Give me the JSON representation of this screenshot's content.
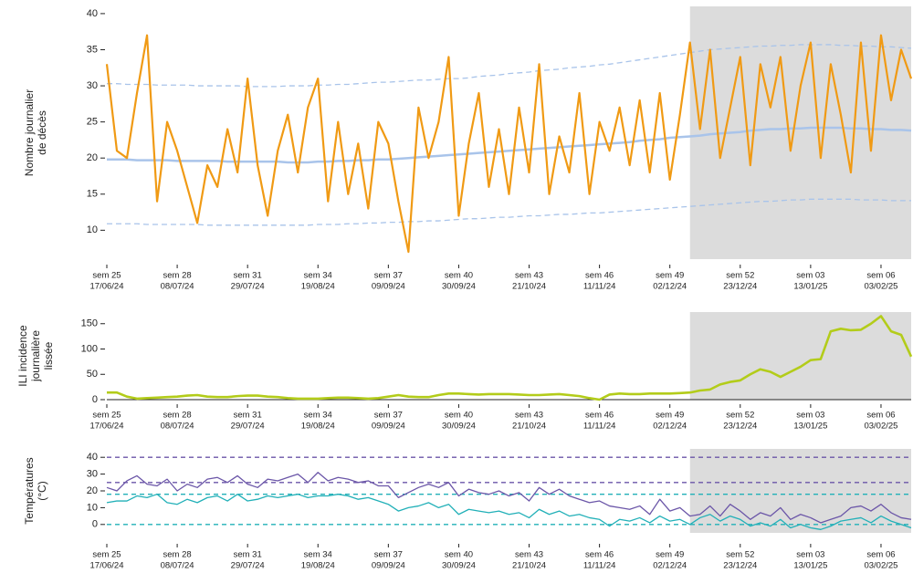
{
  "chart_data": [
    {
      "type": "line",
      "ylabel": [
        "Nombre journalier",
        "de décès"
      ],
      "ylim": [
        6,
        41
      ],
      "yticks": [
        10,
        15,
        20,
        25,
        30,
        35,
        40
      ],
      "xlim": [
        "17/06/24",
        "12/02/25"
      ],
      "shade_from": "08/12/24",
      "shade_color": "#dcdcdc",
      "xticks": [
        {
          "value": "17/06/24",
          "label": "sem 25"
        },
        {
          "value": "08/07/24",
          "label": "sem 28"
        },
        {
          "value": "29/07/24",
          "label": "sem 31"
        },
        {
          "value": "19/08/24",
          "label": "sem 34"
        },
        {
          "value": "09/09/24",
          "label": "sem 37"
        },
        {
          "value": "30/09/24",
          "label": "sem 40"
        },
        {
          "value": "21/10/24",
          "label": "sem 43"
        },
        {
          "value": "11/11/24",
          "label": "sem 46"
        },
        {
          "value": "02/12/24",
          "label": "sem 49"
        },
        {
          "value": "23/12/24",
          "label": "sem 52"
        },
        {
          "value": "13/01/25",
          "label": "sem 03"
        },
        {
          "value": "03/02/25",
          "label": "sem 06"
        }
      ],
      "x": [
        "17/06/24",
        "20/06/24",
        "23/06/24",
        "26/06/24",
        "29/06/24",
        "02/07/24",
        "05/07/24",
        "08/07/24",
        "11/07/24",
        "14/07/24",
        "17/07/24",
        "20/07/24",
        "23/07/24",
        "26/07/24",
        "29/07/24",
        "01/08/24",
        "04/08/24",
        "07/08/24",
        "10/08/24",
        "13/08/24",
        "16/08/24",
        "19/08/24",
        "22/08/24",
        "25/08/24",
        "28/08/24",
        "31/08/24",
        "03/09/24",
        "06/09/24",
        "09/09/24",
        "12/09/24",
        "15/09/24",
        "18/09/24",
        "21/09/24",
        "24/09/24",
        "27/09/24",
        "30/09/24",
        "03/10/24",
        "06/10/24",
        "09/10/24",
        "12/10/24",
        "15/10/24",
        "18/10/24",
        "21/10/24",
        "24/10/24",
        "27/10/24",
        "30/10/24",
        "02/11/24",
        "05/11/24",
        "08/11/24",
        "11/11/24",
        "14/11/24",
        "17/11/24",
        "20/11/24",
        "23/11/24",
        "26/11/24",
        "29/11/24",
        "02/12/24",
        "05/12/24",
        "08/12/24",
        "11/12/24",
        "14/12/24",
        "17/12/24",
        "20/12/24",
        "23/12/24",
        "26/12/24",
        "29/12/24",
        "01/01/25",
        "04/01/25",
        "07/01/25",
        "10/01/25",
        "13/01/25",
        "16/01/25",
        "19/01/25",
        "22/01/25",
        "25/01/25",
        "28/01/25",
        "31/01/25",
        "03/02/25",
        "06/02/25",
        "09/02/25",
        "12/02/25"
      ],
      "series": [
        {
          "color": "#a9c4ea",
          "dash": true,
          "width": 1.3,
          "values": [
            30.3,
            30.3,
            30.2,
            30.2,
            30.2,
            30.1,
            30.1,
            30.1,
            30.1,
            30.0,
            30.0,
            30.0,
            30.0,
            30.0,
            29.9,
            29.9,
            29.9,
            29.9,
            30.0,
            30.0,
            30.0,
            30.1,
            30.1,
            30.2,
            30.2,
            30.3,
            30.4,
            30.5,
            30.5,
            30.6,
            30.7,
            30.8,
            30.8,
            30.9,
            31.0,
            31.0,
            31.1,
            31.3,
            31.4,
            31.5,
            31.7,
            31.8,
            31.9,
            32.1,
            32.2,
            32.3,
            32.5,
            32.6,
            32.7,
            32.9,
            33.0,
            33.2,
            33.4,
            33.6,
            33.8,
            34.0,
            34.2,
            34.4,
            34.6,
            34.8,
            35.0,
            35.1,
            35.2,
            35.3,
            35.4,
            35.5,
            35.5,
            35.6,
            35.6,
            35.7,
            35.7,
            35.7,
            35.7,
            35.6,
            35.6,
            35.5,
            35.5,
            35.4,
            35.4,
            35.3,
            35.2
          ]
        },
        {
          "color": "#a9c4ea",
          "dash": true,
          "width": 1.3,
          "values": [
            10.9,
            10.9,
            10.9,
            10.9,
            10.8,
            10.8,
            10.8,
            10.8,
            10.8,
            10.8,
            10.7,
            10.7,
            10.7,
            10.7,
            10.7,
            10.7,
            10.7,
            10.7,
            10.7,
            10.7,
            10.7,
            10.8,
            10.8,
            10.8,
            10.9,
            10.9,
            11.0,
            11.0,
            11.1,
            11.1,
            11.2,
            11.2,
            11.3,
            11.3,
            11.4,
            11.5,
            11.6,
            11.6,
            11.7,
            11.8,
            11.8,
            11.9,
            12.0,
            12.0,
            12.1,
            12.2,
            12.2,
            12.3,
            12.4,
            12.4,
            12.5,
            12.6,
            12.7,
            12.8,
            12.9,
            13.0,
            13.1,
            13.2,
            13.3,
            13.4,
            13.5,
            13.6,
            13.7,
            13.8,
            13.9,
            14.0,
            14.0,
            14.1,
            14.2,
            14.2,
            14.3,
            14.3,
            14.3,
            14.3,
            14.3,
            14.2,
            14.2,
            14.2,
            14.1,
            14.1,
            14.1
          ]
        },
        {
          "color": "#a9c4ea",
          "dash": false,
          "width": 2.5,
          "values": [
            19.8,
            19.8,
            19.8,
            19.7,
            19.7,
            19.7,
            19.7,
            19.6,
            19.6,
            19.6,
            19.6,
            19.6,
            19.5,
            19.5,
            19.5,
            19.5,
            19.5,
            19.5,
            19.4,
            19.4,
            19.4,
            19.5,
            19.5,
            19.6,
            19.6,
            19.7,
            19.7,
            19.8,
            19.8,
            19.9,
            20.0,
            20.1,
            20.2,
            20.3,
            20.4,
            20.5,
            20.6,
            20.7,
            20.8,
            20.9,
            21.0,
            21.1,
            21.2,
            21.3,
            21.4,
            21.5,
            21.6,
            21.7,
            21.8,
            21.9,
            22.0,
            22.1,
            22.2,
            22.4,
            22.5,
            22.6,
            22.8,
            22.9,
            23.0,
            23.1,
            23.3,
            23.4,
            23.5,
            23.6,
            23.8,
            23.9,
            24.0,
            24.0,
            24.1,
            24.1,
            24.2,
            24.2,
            24.2,
            24.2,
            24.1,
            24.1,
            24.0,
            24.0,
            23.9,
            23.9,
            23.8
          ]
        },
        {
          "color": "#f09a14",
          "dash": false,
          "width": 2.2,
          "values": [
            33,
            21,
            20,
            29,
            37,
            14,
            25,
            21,
            16,
            11,
            19,
            16,
            24,
            18,
            31,
            19,
            12,
            21,
            26,
            18,
            27,
            31,
            14,
            25,
            15,
            22,
            13,
            25,
            22,
            14,
            7,
            27,
            20,
            25,
            34,
            12,
            22,
            29,
            16,
            24,
            15,
            27,
            18,
            33,
            15,
            23,
            18,
            29,
            15,
            25,
            21,
            27,
            19,
            28,
            18,
            29,
            17,
            26,
            36,
            24,
            35,
            20,
            27,
            34,
            19,
            33,
            27,
            34,
            21,
            30,
            36,
            20,
            33,
            26,
            18,
            36,
            21,
            37,
            28,
            35,
            31
          ]
        }
      ]
    },
    {
      "type": "line",
      "ylabel": [
        "ILI incidence",
        "journalière",
        "lissée"
      ],
      "ylim": [
        0,
        173
      ],
      "yticks": [
        0,
        50,
        100,
        150
      ],
      "xlim": [
        "17/06/24",
        "12/02/25"
      ],
      "axis_line": true,
      "shade_from": "08/12/24",
      "shade_color": "#dcdcdc",
      "xticks": [
        {
          "value": "17/06/24",
          "label": "sem 25"
        },
        {
          "value": "08/07/24",
          "label": "sem 28"
        },
        {
          "value": "29/07/24",
          "label": "sem 31"
        },
        {
          "value": "19/08/24",
          "label": "sem 34"
        },
        {
          "value": "09/09/24",
          "label": "sem 37"
        },
        {
          "value": "30/09/24",
          "label": "sem 40"
        },
        {
          "value": "21/10/24",
          "label": "sem 43"
        },
        {
          "value": "11/11/24",
          "label": "sem 46"
        },
        {
          "value": "02/12/24",
          "label": "sem 49"
        },
        {
          "value": "23/12/24",
          "label": "sem 52"
        },
        {
          "value": "13/01/25",
          "label": "sem 03"
        },
        {
          "value": "03/02/25",
          "label": "sem 06"
        }
      ],
      "x": [
        "17/06/24",
        "20/06/24",
        "23/06/24",
        "26/06/24",
        "29/06/24",
        "02/07/24",
        "05/07/24",
        "08/07/24",
        "11/07/24",
        "14/07/24",
        "17/07/24",
        "20/07/24",
        "23/07/24",
        "26/07/24",
        "29/07/24",
        "01/08/24",
        "04/08/24",
        "07/08/24",
        "10/08/24",
        "13/08/24",
        "16/08/24",
        "19/08/24",
        "22/08/24",
        "25/08/24",
        "28/08/24",
        "31/08/24",
        "03/09/24",
        "06/09/24",
        "09/09/24",
        "12/09/24",
        "15/09/24",
        "18/09/24",
        "21/09/24",
        "24/09/24",
        "27/09/24",
        "30/09/24",
        "03/10/24",
        "06/10/24",
        "09/10/24",
        "12/10/24",
        "15/10/24",
        "18/10/24",
        "21/10/24",
        "24/10/24",
        "27/10/24",
        "30/10/24",
        "02/11/24",
        "05/11/24",
        "08/11/24",
        "11/11/24",
        "14/11/24",
        "17/11/24",
        "20/11/24",
        "23/11/24",
        "26/11/24",
        "29/11/24",
        "02/12/24",
        "05/12/24",
        "08/12/24",
        "11/12/24",
        "14/12/24",
        "17/12/24",
        "20/12/24",
        "23/12/24",
        "26/12/24",
        "29/12/24",
        "01/01/25",
        "04/01/25",
        "07/01/25",
        "10/01/25",
        "13/01/25",
        "16/01/25",
        "19/01/25",
        "22/01/25",
        "25/01/25",
        "28/01/25",
        "31/01/25",
        "03/02/25",
        "06/02/25",
        "09/02/25",
        "12/02/25"
      ],
      "series": [
        {
          "color": "#b3cc1a",
          "dash": false,
          "width": 2.6,
          "values": [
            14,
            14,
            6,
            2,
            3,
            4,
            5,
            6,
            8,
            9,
            6,
            5,
            5,
            7,
            8,
            8,
            6,
            5,
            3,
            2,
            2,
            2,
            3,
            4,
            4,
            3,
            2,
            3,
            6,
            9,
            6,
            5,
            5,
            9,
            12,
            12,
            11,
            10,
            11,
            11,
            11,
            10,
            9,
            9,
            10,
            11,
            9,
            7,
            3,
            0,
            10,
            12,
            11,
            11,
            12,
            12,
            12,
            13,
            14,
            18,
            20,
            30,
            35,
            38,
            50,
            60,
            55,
            45,
            55,
            65,
            78,
            80,
            135,
            140,
            137,
            138,
            150,
            165,
            135,
            128,
            85
          ]
        }
      ]
    },
    {
      "type": "line",
      "ylabel": [
        "Températures",
        "(°C)"
      ],
      "ylim": [
        -5,
        45
      ],
      "yticks": [
        0,
        10,
        20,
        30,
        40
      ],
      "xlim": [
        "17/06/24",
        "12/02/25"
      ],
      "shade_from": "08/12/24",
      "shade_color": "#dcdcdc",
      "hlines": [
        {
          "value": 40,
          "color": "#6b56a8"
        },
        {
          "value": 25,
          "color": "#6b56a8"
        },
        {
          "value": 18,
          "color": "#22b0b8"
        },
        {
          "value": 0,
          "color": "#22b0b8"
        }
      ],
      "xticks": [
        {
          "value": "17/06/24",
          "label": "sem 25"
        },
        {
          "value": "08/07/24",
          "label": "sem 28"
        },
        {
          "value": "29/07/24",
          "label": "sem 31"
        },
        {
          "value": "19/08/24",
          "label": "sem 34"
        },
        {
          "value": "09/09/24",
          "label": "sem 37"
        },
        {
          "value": "30/09/24",
          "label": "sem 40"
        },
        {
          "value": "21/10/24",
          "label": "sem 43"
        },
        {
          "value": "11/11/24",
          "label": "sem 46"
        },
        {
          "value": "02/12/24",
          "label": "sem 49"
        },
        {
          "value": "23/12/24",
          "label": "sem 52"
        },
        {
          "value": "13/01/25",
          "label": "sem 03"
        },
        {
          "value": "03/02/25",
          "label": "sem 06"
        }
      ],
      "x": [
        "17/06/24",
        "20/06/24",
        "23/06/24",
        "26/06/24",
        "29/06/24",
        "02/07/24",
        "05/07/24",
        "08/07/24",
        "11/07/24",
        "14/07/24",
        "17/07/24",
        "20/07/24",
        "23/07/24",
        "26/07/24",
        "29/07/24",
        "01/08/24",
        "04/08/24",
        "07/08/24",
        "10/08/24",
        "13/08/24",
        "16/08/24",
        "19/08/24",
        "22/08/24",
        "25/08/24",
        "28/08/24",
        "31/08/24",
        "03/09/24",
        "06/09/24",
        "09/09/24",
        "12/09/24",
        "15/09/24",
        "18/09/24",
        "21/09/24",
        "24/09/24",
        "27/09/24",
        "30/09/24",
        "03/10/24",
        "06/10/24",
        "09/10/24",
        "12/10/24",
        "15/10/24",
        "18/10/24",
        "21/10/24",
        "24/10/24",
        "27/10/24",
        "30/10/24",
        "02/11/24",
        "05/11/24",
        "08/11/24",
        "11/11/24",
        "14/11/24",
        "17/11/24",
        "20/11/24",
        "23/11/24",
        "26/11/24",
        "29/11/24",
        "02/12/24",
        "05/12/24",
        "08/12/24",
        "11/12/24",
        "14/12/24",
        "17/12/24",
        "20/12/24",
        "23/12/24",
        "26/12/24",
        "29/12/24",
        "01/01/25",
        "04/01/25",
        "07/01/25",
        "10/01/25",
        "13/01/25",
        "16/01/25",
        "19/01/25",
        "22/01/25",
        "25/01/25",
        "28/01/25",
        "31/01/25",
        "03/02/25",
        "06/02/25",
        "09/02/25",
        "12/02/25"
      ],
      "series": [
        {
          "color": "#6b56a8",
          "dash": false,
          "width": 1.3,
          "values": [
            22,
            20,
            26,
            29,
            24,
            23,
            27,
            20,
            24,
            22,
            27,
            28,
            25,
            29,
            24,
            22,
            27,
            26,
            28,
            30,
            25,
            31,
            26,
            28,
            27,
            25,
            26,
            23,
            23,
            16,
            19,
            22,
            24,
            22,
            25,
            17,
            21,
            19,
            18,
            20,
            17,
            19,
            14,
            22,
            18,
            21,
            17,
            15,
            13,
            14,
            11,
            10,
            9,
            11,
            6,
            15,
            8,
            10,
            5,
            6,
            11,
            5,
            12,
            8,
            3,
            7,
            5,
            10,
            3,
            6,
            4,
            1,
            3,
            5,
            10,
            11,
            8,
            12,
            7,
            4,
            3
          ]
        },
        {
          "color": "#22b0b8",
          "dash": false,
          "width": 1.3,
          "values": [
            13,
            14,
            14,
            17,
            16,
            18,
            13,
            12,
            15,
            13,
            16,
            17,
            14,
            18,
            14,
            15,
            17,
            16,
            17,
            18,
            16,
            17,
            17,
            18,
            17,
            15,
            16,
            14,
            12,
            8,
            10,
            11,
            13,
            10,
            12,
            6,
            9,
            8,
            7,
            8,
            6,
            7,
            4,
            9,
            6,
            8,
            5,
            6,
            4,
            3,
            -1,
            3,
            2,
            4,
            1,
            5,
            2,
            3,
            0,
            4,
            6,
            2,
            5,
            3,
            -1,
            1,
            -1,
            3,
            -2,
            0,
            -2,
            -3,
            -1,
            2,
            3,
            4,
            1,
            5,
            2,
            0,
            -2
          ]
        }
      ]
    }
  ]
}
